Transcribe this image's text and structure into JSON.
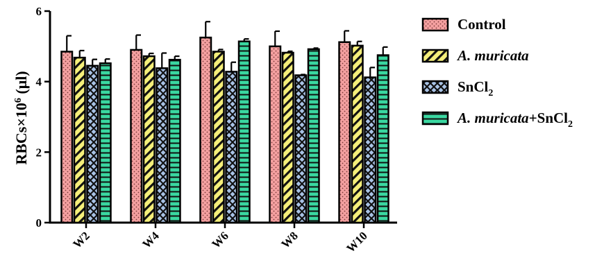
{
  "chart_data": {
    "type": "bar",
    "categories": [
      "W2",
      "W4",
      "W6",
      "W8",
      "W10"
    ],
    "ylabel_main": "RBCs×10",
    "ylabel_sup": "6",
    "ylabel_unit": " (μl)",
    "ylim": [
      0,
      6
    ],
    "yticks": [
      "0",
      "2",
      "4",
      "6"
    ],
    "grid": false,
    "legend_position": "right",
    "series": [
      {
        "name": "Control",
        "values": [
          4.85,
          4.9,
          5.25,
          5.0,
          5.12
        ],
        "errors": [
          0.45,
          0.42,
          0.45,
          0.43,
          0.32
        ],
        "color": "#f4a0a0",
        "pattern": "dots"
      },
      {
        "name": "A. muricata",
        "values": [
          4.68,
          4.72,
          4.85,
          4.82,
          5.02
        ],
        "errors": [
          0.2,
          0.08,
          0.06,
          0.04,
          0.12
        ],
        "color": "#f5ef7a",
        "pattern": "diagonal"
      },
      {
        "name": "SnCl2",
        "values": [
          4.45,
          4.38,
          4.28,
          4.18,
          4.12
        ],
        "errors": [
          0.18,
          0.43,
          0.27,
          0.02,
          0.28
        ],
        "color": "#a9c3e6",
        "pattern": "diamond"
      },
      {
        "name": "A. muricata+SnCl2",
        "values": [
          4.52,
          4.62,
          5.14,
          4.92,
          4.75
        ],
        "errors": [
          0.12,
          0.1,
          0.07,
          0.03,
          0.23
        ],
        "color": "#3ad7a0",
        "pattern": "horizontal"
      }
    ]
  },
  "legend": [
    {
      "italic": "",
      "text": "Control",
      "sub": "",
      "tail": ""
    },
    {
      "italic": "A. muricata",
      "text": "",
      "sub": "",
      "tail": ""
    },
    {
      "italic": "",
      "text": "SnCl",
      "sub": "2",
      "tail": ""
    },
    {
      "italic": "A. muricata",
      "text": "+SnCl",
      "sub": "2",
      "tail": ""
    }
  ]
}
